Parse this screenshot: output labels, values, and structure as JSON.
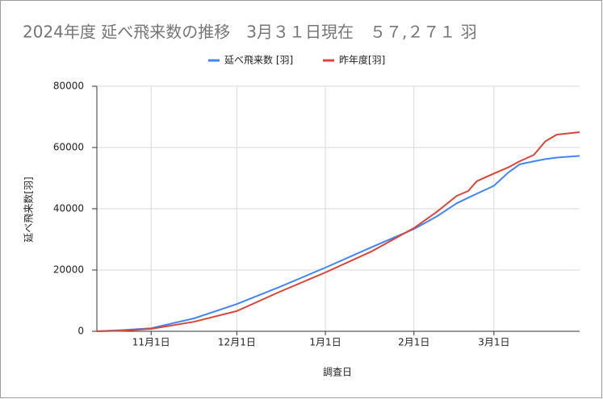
{
  "chart_data": {
    "type": "line",
    "title": "2024年度 延べ飛来数の推移　3月３１日現在　５７,２７１ 羽",
    "x_label": "調査日",
    "y_label": "延べ飛来数[羽]",
    "x": [
      "10月13日",
      "10月22日",
      "11月1日",
      "11月16日",
      "12月1日",
      "12月16日",
      "1月1日",
      "1月17日",
      "2月1日",
      "2月9日",
      "2月16日",
      "2月20日",
      "2月23日",
      "3月1日",
      "3月6日",
      "3月10日",
      "3月15日",
      "3月19日",
      "3月23日",
      "3月31日"
    ],
    "series": [
      {
        "name": "延べ飛来数 [羽]",
        "color": "#4285f4",
        "values": [
          0,
          400,
          1000,
          4200,
          8900,
          14500,
          20800,
          27400,
          33400,
          37500,
          41800,
          43600,
          44900,
          47500,
          51800,
          54500,
          55500,
          56200,
          56700,
          57271
        ]
      },
      {
        "name": "昨年度[羽]",
        "color": "#db4437",
        "values": [
          0,
          200,
          800,
          3100,
          6600,
          12900,
          19200,
          26000,
          33700,
          39000,
          44200,
          45800,
          49000,
          51500,
          53500,
          55500,
          57600,
          62000,
          64200,
          65000
        ]
      }
    ],
    "xlim": [
      "10月13日",
      "3月31日"
    ],
    "xticks": [
      "11月1日",
      "12月1日",
      "1月1日",
      "2月1日",
      "3月1日"
    ],
    "ylim": [
      0,
      80000
    ],
    "yticks": [
      0,
      20000,
      40000,
      60000,
      80000
    ],
    "grid": true,
    "legend": "top"
  }
}
